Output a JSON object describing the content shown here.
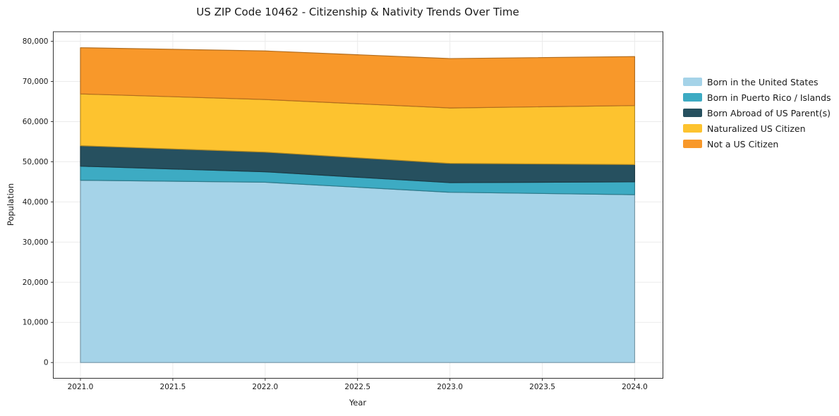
{
  "title": "US ZIP Code 10462 - Citizenship & Nativity Trends Over Time",
  "chart_data": {
    "type": "area",
    "stacked": true,
    "title": "US ZIP Code 10462 - Citizenship & Nativity Trends Over Time",
    "xlabel": "Year",
    "ylabel": "Population",
    "x": [
      2021,
      2022,
      2023,
      2024
    ],
    "xlim": [
      2020.85,
      2024.15
    ],
    "ylim": [
      0,
      80000
    ],
    "grid": true,
    "legend_position": "right-outside",
    "x_ticks": [
      2021.0,
      2021.5,
      2022.0,
      2022.5,
      2023.0,
      2023.5,
      2024.0
    ],
    "x_tick_labels": [
      "2021.0",
      "2021.5",
      "2022.0",
      "2022.5",
      "2023.0",
      "2023.5",
      "2024.0"
    ],
    "y_ticks": [
      0,
      10000,
      20000,
      30000,
      40000,
      50000,
      60000,
      70000,
      80000
    ],
    "y_tick_labels": [
      "0",
      "10,000",
      "20,000",
      "30,000",
      "40,000",
      "50,000",
      "60,000",
      "70,000",
      "80,000"
    ],
    "series": [
      {
        "name": "Born in the United States",
        "color": "#a5d3e8",
        "values": [
          45400,
          44900,
          42400,
          41800
        ]
      },
      {
        "name": "Born in Puerto Rico / Islands",
        "color": "#3dabc3",
        "values": [
          3500,
          2600,
          2400,
          3200
        ]
      },
      {
        "name": "Born Abroad of US Parent(s)",
        "color": "#26505f",
        "values": [
          5100,
          4900,
          4800,
          4300
        ]
      },
      {
        "name": "Naturalized US Citizen",
        "color": "#fdc32f",
        "values": [
          12900,
          13100,
          13800,
          14700
        ]
      },
      {
        "name": "Not a US Citizen",
        "color": "#f8982a",
        "values": [
          11500,
          12100,
          12300,
          12200
        ]
      }
    ],
    "totals": [
      78400,
      77600,
      75700,
      76200
    ]
  },
  "style_colors": {
    "background": "#ffffff",
    "gridline": "#ebebeb",
    "spine": "#333333",
    "text": "#1a1a1a"
  }
}
